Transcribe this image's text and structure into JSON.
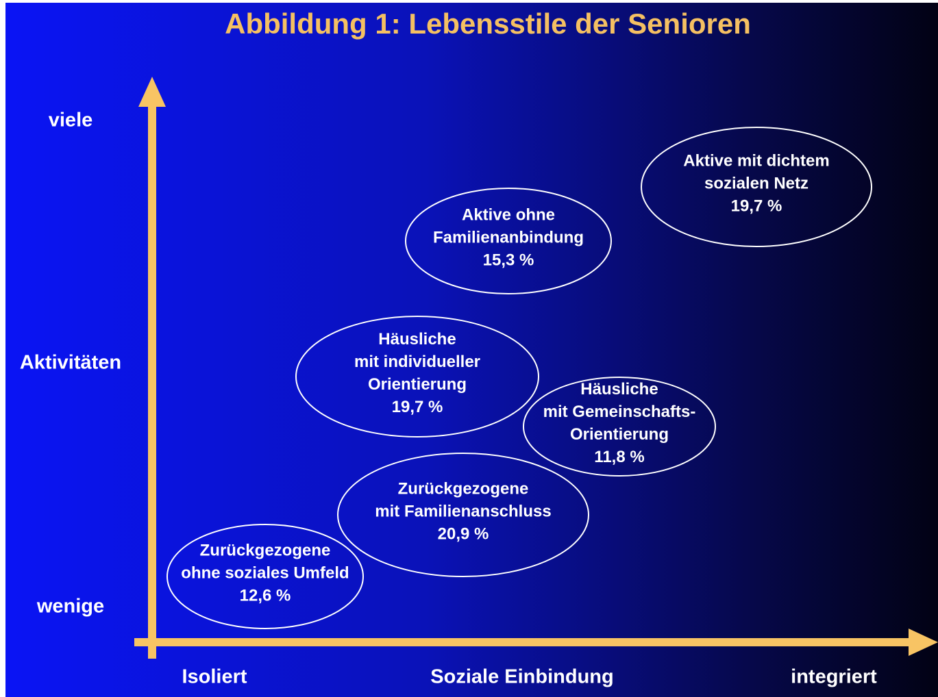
{
  "title": "Abbildung 1: Lebensstile der Senioren",
  "y_axis": {
    "top": "viele",
    "middle": "Aktivitäten",
    "bottom": "wenige"
  },
  "x_axis": {
    "left": "Isoliert",
    "middle": "Soziale Einbindung",
    "right": "integriert"
  },
  "nodes": [
    {
      "lines": [
        "Aktive mit dichtem",
        "sozialen Netz"
      ],
      "share": "19,7 %"
    },
    {
      "lines": [
        "Aktive ohne",
        "Familienanbindung"
      ],
      "share": "15,3 %"
    },
    {
      "lines": [
        "Häusliche",
        "mit individueller",
        "Orientierung"
      ],
      "share": "19,7 %"
    },
    {
      "lines": [
        "Häusliche",
        "mit Gemeinschafts-",
        "Orientierung"
      ],
      "share": "11,8 %"
    },
    {
      "lines": [
        "Zurückgezogene",
        "mit Familienanschluss"
      ],
      "share": "20,9 %"
    },
    {
      "lines": [
        "Zurückgezogene",
        "ohne soziales Umfeld"
      ],
      "share": "12,6 %"
    }
  ]
}
